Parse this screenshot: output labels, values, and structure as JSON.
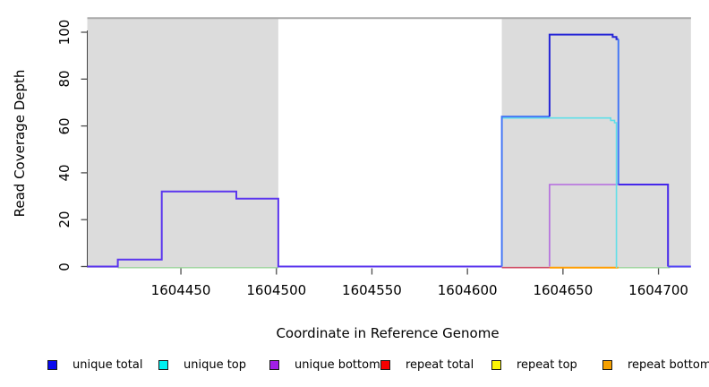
{
  "accent_colors": {
    "region_fill": "#dcdcdc",
    "region_top_line": "#a9a9a9",
    "axis_line": "#444444",
    "tick_color": "#4d4d4d"
  },
  "chart_data": {
    "type": "line",
    "title": "",
    "xlabel": "Coordinate in Reference Genome",
    "ylabel": "Read Coverage Depth",
    "x_ticks": [
      1604450,
      1604500,
      1604550,
      1604600,
      1604650,
      1604700
    ],
    "y_ticks": [
      0,
      20,
      40,
      60,
      80,
      100
    ],
    "x_range": [
      1604401,
      1604717
    ],
    "y_range": [
      0,
      106
    ],
    "grid": "off",
    "legend_position": "bottom",
    "repeat_regions": [
      {
        "name": "repeat-region-left",
        "x0": 1604401,
        "x1": 1604501,
        "top": 106
      },
      {
        "name": "repeat-region-right",
        "x0": 1604618,
        "x1": 1604717,
        "top": 106
      }
    ],
    "region_top_line": {
      "depth": 106,
      "x0": 1604401,
      "x1": 1604717
    },
    "series": [
      {
        "name": "unique total",
        "color": "#0909ee",
        "steps": [
          [
            1604401,
            0
          ],
          [
            1604417,
            3
          ],
          [
            1604440,
            32
          ],
          [
            1604479,
            29
          ],
          [
            1604501,
            0
          ],
          [
            1604618,
            64
          ],
          [
            1604643,
            99
          ],
          [
            1604676,
            98
          ],
          [
            1604678,
            97
          ],
          [
            1604679,
            35
          ],
          [
            1604705,
            0
          ],
          [
            1604717,
            0
          ]
        ]
      },
      {
        "name": "unique top",
        "color": "#00f0f0",
        "steps": [
          [
            1604401,
            0
          ],
          [
            1604618,
            64
          ],
          [
            1604675,
            63
          ],
          [
            1604677,
            62
          ],
          [
            1604678,
            0
          ],
          [
            1604717,
            0
          ]
        ]
      },
      {
        "name": "unique bottom",
        "color": "#a21fe8",
        "steps": [
          [
            1604401,
            0
          ],
          [
            1604643,
            35
          ],
          [
            1604705,
            0
          ],
          [
            1604717,
            0
          ]
        ]
      },
      {
        "name": "repeat total",
        "color": "#f50000",
        "steps": [
          [
            1604401,
            0
          ],
          [
            1604717,
            0
          ]
        ]
      },
      {
        "name": "repeat top",
        "color": "#faf505",
        "steps": [
          [
            1604401,
            0
          ],
          [
            1604717,
            0
          ]
        ]
      },
      {
        "name": "repeat bottom",
        "color": "#f5a000",
        "steps": [
          [
            1604401,
            0
          ],
          [
            1604717,
            0
          ]
        ]
      }
    ],
    "render_segments": [
      {
        "name": "baseline-artifact-green-left",
        "color": "#9bd49b",
        "lw": 1.4,
        "dy": 1.3,
        "points": [
          [
            1604417,
            0
          ],
          [
            1604501,
            0
          ]
        ]
      },
      {
        "name": "baseline-artifact-green-right",
        "color": "#9bd49b",
        "lw": 1.4,
        "dy": 1.3,
        "points": [
          [
            1604679,
            0
          ],
          [
            1604706,
            0
          ]
        ]
      },
      {
        "name": "baseline-repeat-total-red",
        "color": "#cf4b63",
        "lw": 1.6,
        "dy": 1.2,
        "points": [
          [
            1604618,
            0
          ],
          [
            1604643,
            0
          ]
        ]
      },
      {
        "name": "baseline-repeat-bottom-orange",
        "color": "#ff9d00",
        "lw": 2,
        "dy": 1.2,
        "points": [
          [
            1604643,
            0
          ],
          [
            1604679,
            0
          ]
        ]
      },
      {
        "name": "unique-bottom-line",
        "color": "#b36adf",
        "lw": 1.6,
        "dy": 0,
        "points": [
          [
            1604643,
            0
          ],
          [
            1604643,
            35
          ],
          [
            1604705,
            35
          ]
        ]
      },
      {
        "name": "unique-top-line",
        "color": "#5fdfe8",
        "lw": 1.6,
        "dy": 1.6,
        "points": [
          [
            1604618,
            64
          ],
          [
            1604675,
            64
          ],
          [
            1604675,
            63
          ],
          [
            1604677,
            63
          ],
          [
            1604677,
            62
          ],
          [
            1604678,
            62
          ],
          [
            1604678,
            0
          ]
        ]
      },
      {
        "name": "unique-total-left-hump",
        "color": "#5b36ee",
        "lw": 2,
        "dy": 0,
        "points": [
          [
            1604401,
            0
          ],
          [
            1604417,
            0
          ],
          [
            1604417,
            3
          ],
          [
            1604440,
            3
          ],
          [
            1604440,
            32
          ],
          [
            1604479,
            32
          ],
          [
            1604479,
            29
          ],
          [
            1604501,
            29
          ],
          [
            1604501,
            0
          ],
          [
            1604618,
            0
          ]
        ]
      },
      {
        "name": "unique-total-step-64",
        "color": "#4677f5",
        "lw": 2,
        "dy": 0,
        "points": [
          [
            1604618,
            0
          ],
          [
            1604618,
            64
          ],
          [
            1604643,
            64
          ]
        ]
      },
      {
        "name": "unique-total-peak-99",
        "color": "#2525d6",
        "lw": 2,
        "dy": 0,
        "points": [
          [
            1604643,
            64
          ],
          [
            1604643,
            99
          ],
          [
            1604676,
            99
          ],
          [
            1604676,
            98
          ],
          [
            1604678,
            98
          ],
          [
            1604678,
            97
          ],
          [
            1604679,
            97
          ]
        ]
      },
      {
        "name": "unique-total-drop",
        "color": "#4677f5",
        "lw": 2,
        "dy": 0,
        "points": [
          [
            1604679,
            97
          ],
          [
            1604679,
            35
          ]
        ]
      },
      {
        "name": "unique-total-right-35",
        "color": "#4527ea",
        "lw": 2,
        "dy": 0,
        "points": [
          [
            1604679,
            35
          ],
          [
            1604705,
            35
          ],
          [
            1604705,
            0
          ]
        ]
      },
      {
        "name": "unique-total-tail",
        "color": "#5546f7",
        "lw": 2,
        "dy": 0,
        "points": [
          [
            1604705,
            0
          ],
          [
            1604717,
            0
          ]
        ]
      }
    ],
    "legend": [
      {
        "label": "unique total",
        "color": "#0909ee"
      },
      {
        "label": "unique top",
        "color": "#00f0f0"
      },
      {
        "label": "unique bottom",
        "color": "#a21fe8"
      },
      {
        "label": "repeat total",
        "color": "#f50000"
      },
      {
        "label": "repeat top",
        "color": "#faf505"
      },
      {
        "label": "repeat bottom",
        "color": "#f5a000"
      }
    ]
  }
}
